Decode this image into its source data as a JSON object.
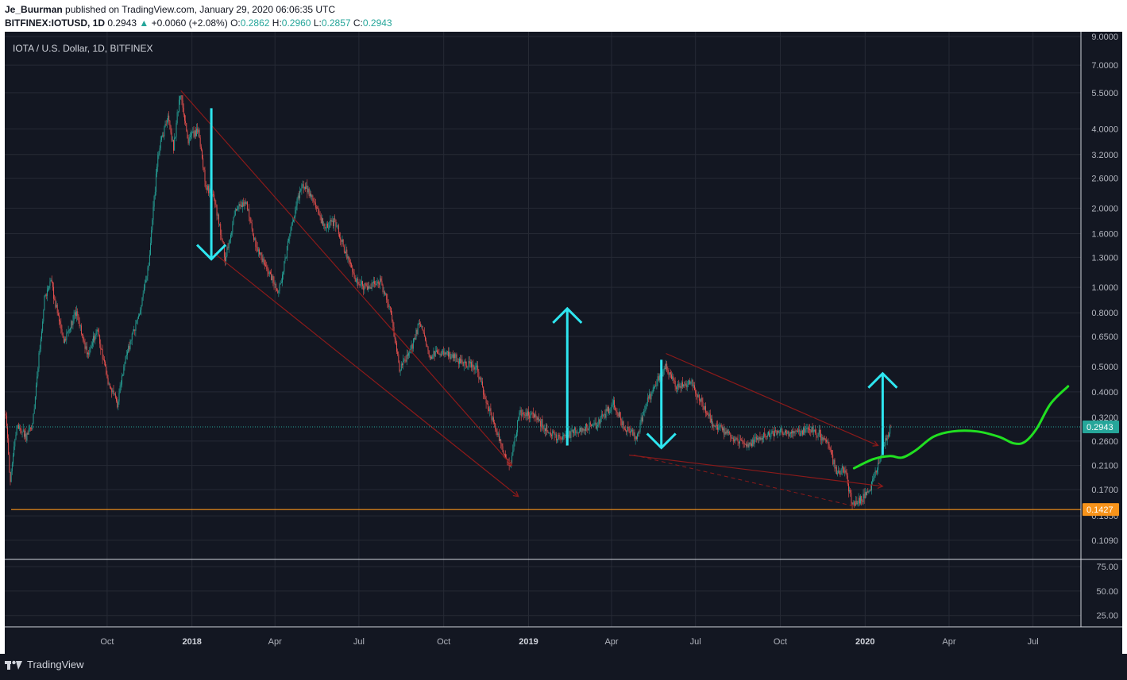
{
  "header": {
    "author": "Je_Buurman",
    "published": "published on TradingView.com, January 29, 2020 06:06:35 UTC",
    "symbol": "BITFINEX:IOTUSD, 1D",
    "last": "0.2943",
    "change": "+0.0060 (+2.08%)",
    "o_label": "O:",
    "o_value": "0.2862",
    "h_label": "H:",
    "h_value": "0.2960",
    "l_label": "L:",
    "l_value": "0.2857",
    "c_label": "C:",
    "c_value": "0.2943"
  },
  "footer": {
    "brand": "TradingView"
  },
  "colors": {
    "background": "#131722",
    "up_candle": "#26a69a",
    "down_candle": "#ef5350",
    "channel": "#8b1a1a",
    "arrows": "#2ee6f0",
    "projection": "#21e021",
    "support": "#f7931a"
  },
  "chart_data": {
    "type": "candlestick",
    "title": "IOTA / U.S. Dollar, 1D, BITFINEX",
    "scale": "log",
    "ylim": [
      0.0935,
      9.0
    ],
    "price_ticks": [
      "9.0000",
      "7.0000",
      "5.5000",
      "4.0000",
      "3.2000",
      "2.6000",
      "2.0000",
      "1.6000",
      "1.3000",
      "1.0000",
      "0.8000",
      "0.6500",
      "0.5000",
      "0.4000",
      "0.3200",
      "0.2600",
      "0.2100",
      "0.1700",
      "0.1350",
      "0.1090"
    ],
    "x_ticks": [
      {
        "date": "2017-10-01",
        "label": "Oct",
        "bold": false
      },
      {
        "date": "2018-01-01",
        "label": "2018",
        "bold": true
      },
      {
        "date": "2018-04-01",
        "label": "Apr",
        "bold": false
      },
      {
        "date": "2018-07-01",
        "label": "Jul",
        "bold": false
      },
      {
        "date": "2018-10-01",
        "label": "Oct",
        "bold": false
      },
      {
        "date": "2019-01-01",
        "label": "2019",
        "bold": true
      },
      {
        "date": "2019-04-01",
        "label": "Apr",
        "bold": false
      },
      {
        "date": "2019-07-01",
        "label": "Jul",
        "bold": false
      },
      {
        "date": "2019-10-01",
        "label": "Oct",
        "bold": false
      },
      {
        "date": "2020-01-01",
        "label": "2020",
        "bold": true
      },
      {
        "date": "2020-04-01",
        "label": "Apr",
        "bold": false
      },
      {
        "date": "2020-07-01",
        "label": "Jul",
        "bold": false
      }
    ],
    "xlim": [
      "2017-06-12",
      "2020-08-22"
    ],
    "last_price": "0.2943",
    "support_price": "0.1427",
    "support_value": 0.1427,
    "price_path": [
      [
        "2017-06-13",
        0.33
      ],
      [
        "2017-06-18",
        0.18
      ],
      [
        "2017-06-25",
        0.3
      ],
      [
        "2017-07-05",
        0.27
      ],
      [
        "2017-07-12",
        0.3
      ],
      [
        "2017-07-25",
        0.9
      ],
      [
        "2017-08-01",
        1.05
      ],
      [
        "2017-08-15",
        0.62
      ],
      [
        "2017-08-28",
        0.8
      ],
      [
        "2017-09-10",
        0.55
      ],
      [
        "2017-09-20",
        0.7
      ],
      [
        "2017-10-01",
        0.45
      ],
      [
        "2017-10-12",
        0.36
      ],
      [
        "2017-10-20",
        0.52
      ],
      [
        "2017-11-05",
        0.8
      ],
      [
        "2017-11-15",
        1.2
      ],
      [
        "2017-11-25",
        3.2
      ],
      [
        "2017-12-06",
        4.5
      ],
      [
        "2017-12-12",
        3.4
      ],
      [
        "2017-12-19",
        5.5
      ],
      [
        "2017-12-28",
        3.6
      ],
      [
        "2018-01-08",
        4.0
      ],
      [
        "2018-01-16",
        2.4
      ],
      [
        "2018-01-25",
        2.2
      ],
      [
        "2018-02-06",
        1.3
      ],
      [
        "2018-02-18",
        2.0
      ],
      [
        "2018-03-01",
        2.1
      ],
      [
        "2018-03-12",
        1.4
      ],
      [
        "2018-03-25",
        1.15
      ],
      [
        "2018-04-05",
        0.95
      ],
      [
        "2018-04-20",
        1.8
      ],
      [
        "2018-05-01",
        2.5
      ],
      [
        "2018-05-10",
        2.2
      ],
      [
        "2018-05-25",
        1.7
      ],
      [
        "2018-06-05",
        1.8
      ],
      [
        "2018-06-15",
        1.4
      ],
      [
        "2018-06-28",
        1.05
      ],
      [
        "2018-07-10",
        1.0
      ],
      [
        "2018-07-24",
        1.05
      ],
      [
        "2018-08-05",
        0.8
      ],
      [
        "2018-08-14",
        0.48
      ],
      [
        "2018-08-28",
        0.6
      ],
      [
        "2018-09-05",
        0.75
      ],
      [
        "2018-09-15",
        0.55
      ],
      [
        "2018-10-01",
        0.57
      ],
      [
        "2018-10-20",
        0.52
      ],
      [
        "2018-11-05",
        0.5
      ],
      [
        "2018-11-18",
        0.35
      ],
      [
        "2018-12-01",
        0.26
      ],
      [
        "2018-12-12",
        0.21
      ],
      [
        "2018-12-22",
        0.33
      ],
      [
        "2019-01-05",
        0.33
      ],
      [
        "2019-01-20",
        0.29
      ],
      [
        "2019-02-05",
        0.26
      ],
      [
        "2019-02-25",
        0.29
      ],
      [
        "2019-03-15",
        0.3
      ],
      [
        "2019-04-03",
        0.36
      ],
      [
        "2019-04-15",
        0.29
      ],
      [
        "2019-04-28",
        0.27
      ],
      [
        "2019-05-10",
        0.37
      ],
      [
        "2019-05-20",
        0.44
      ],
      [
        "2019-05-30",
        0.5
      ],
      [
        "2019-06-10",
        0.42
      ],
      [
        "2019-06-26",
        0.44
      ],
      [
        "2019-07-05",
        0.38
      ],
      [
        "2019-07-20",
        0.3
      ],
      [
        "2019-08-10",
        0.27
      ],
      [
        "2019-08-25",
        0.25
      ],
      [
        "2019-09-10",
        0.27
      ],
      [
        "2019-09-20",
        0.28
      ],
      [
        "2019-10-05",
        0.28
      ],
      [
        "2019-10-20",
        0.28
      ],
      [
        "2019-11-05",
        0.29
      ],
      [
        "2019-11-20",
        0.26
      ],
      [
        "2019-12-01",
        0.2
      ],
      [
        "2019-12-10",
        0.2
      ],
      [
        "2019-12-18",
        0.15
      ],
      [
        "2019-12-25",
        0.155
      ],
      [
        "2020-01-05",
        0.165
      ],
      [
        "2020-01-15",
        0.21
      ],
      [
        "2020-01-22",
        0.26
      ],
      [
        "2020-01-29",
        0.2943
      ]
    ],
    "annotations": {
      "channel_lines": [
        [
          [
            "2017-12-20",
            5.6
          ],
          [
            "2018-12-14",
            0.21
          ]
        ],
        [
          [
            "2018-01-25",
            1.35
          ],
          [
            "2018-12-21",
            0.16
          ]
        ],
        [
          [
            "2019-05-30",
            0.56
          ],
          [
            "2020-01-15",
            0.25
          ]
        ],
        [
          [
            "2019-04-20",
            0.23
          ],
          [
            "2020-01-20",
            0.175
          ]
        ]
      ],
      "channel_arrows": [
        [
          "2018-12-21",
          0.16
        ],
        [
          "2019-02-18",
          0.23
        ],
        [
          "2020-02-10",
          0.2
        ],
        [
          "2020-01-22",
          0.175
        ]
      ],
      "dashed_line": [
        [
          "2019-04-25",
          0.23
        ],
        [
          "2019-12-20",
          0.147
        ]
      ],
      "cyan_arrows": [
        {
          "from": [
            "2018-01-22",
            4.8
          ],
          "to": [
            "2018-01-22",
            1.28
          ],
          "dir": "down"
        },
        {
          "from": [
            "2019-02-12",
            0.25
          ],
          "to": [
            "2019-02-12",
            0.83
          ],
          "dir": "up"
        },
        {
          "from": [
            "2019-05-25",
            0.53
          ],
          "to": [
            "2019-05-25",
            0.245
          ],
          "dir": "down"
        },
        {
          "from": [
            "2020-01-20",
            0.23
          ],
          "to": [
            "2020-01-20",
            0.47
          ],
          "dir": "up"
        }
      ],
      "projection": [
        [
          "2019-12-20",
          0.205
        ],
        [
          "2020-01-10",
          0.222
        ],
        [
          "2020-01-28",
          0.228
        ],
        [
          "2020-02-10",
          0.225
        ],
        [
          "2020-02-25",
          0.24
        ],
        [
          "2020-03-15",
          0.27
        ],
        [
          "2020-04-05",
          0.283
        ],
        [
          "2020-05-01",
          0.283
        ],
        [
          "2020-05-25",
          0.27
        ],
        [
          "2020-06-10",
          0.255
        ],
        [
          "2020-06-22",
          0.258
        ],
        [
          "2020-07-05",
          0.29
        ],
        [
          "2020-07-20",
          0.36
        ],
        [
          "2020-08-08",
          0.42
        ]
      ]
    },
    "oscillator": {
      "ticks": [
        "75.00",
        "50.00",
        "25.00"
      ],
      "ylim": [
        15,
        80
      ]
    }
  }
}
